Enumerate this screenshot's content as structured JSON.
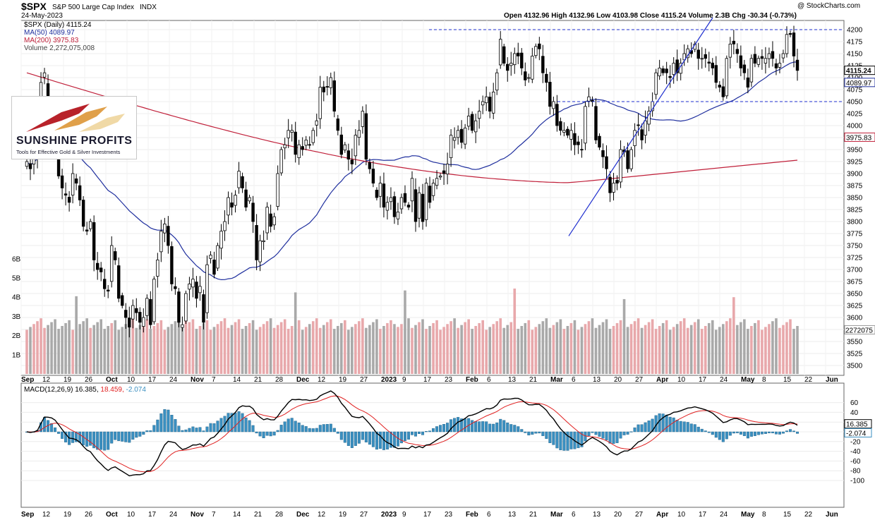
{
  "header": {
    "symbol": "$SPX",
    "name": "S&P 500 Large Cap Index",
    "exchange": "INDX",
    "date": "24-May-2023",
    "copyright": "@ StockCharts.com",
    "ohlc": "Open 4132.96  High 4132.96  Low 4103.98  Close 4115.24  Volume 2.3B  Chg -30.34 (-0.73%)"
  },
  "legend": {
    "main": "$SPX (Daily) 4115.24",
    "ma50": "MA(50) 4089.97",
    "ma200": "MA(200) 3975.83",
    "volume": "Volume 2,272,075,008",
    "macd_name": "MACD(12,26,9) 16.385,",
    "macd_signal": " 18.459,",
    "macd_hist": " -2.074"
  },
  "logo": {
    "name": "SUNSHINE PROFITS",
    "tagline": "Tools for Effective Gold & Silver Investments"
  },
  "colors": {
    "up_volume": "#e8a8ab",
    "down_volume": "#a9a9a9",
    "ma50": "#1f2f9e",
    "ma200": "#c0203a",
    "macd": "#000000",
    "signal": "#e02020",
    "hist": "#3a8fc0",
    "trendline": "#1f2fcf"
  },
  "chart_data": [
    {
      "type": "candlestick",
      "title": "$SPX S&P 500 Large Cap Index",
      "price_ticks": [
        3500,
        3525,
        3550,
        3575,
        3600,
        3625,
        3650,
        3675,
        3700,
        3725,
        3750,
        3775,
        3800,
        3825,
        3850,
        3875,
        3900,
        3925,
        3950,
        3975,
        4000,
        4025,
        4050,
        4075,
        4100,
        4125,
        4150,
        4175,
        4200
      ],
      "ylim": [
        3490,
        4215
      ],
      "volume_ticks": [
        "1B",
        "2B",
        "3B",
        "4B",
        "5B",
        "6B"
      ],
      "x_ticks": [
        "Sep",
        "12",
        "19",
        "26",
        "Oct",
        "10",
        "17",
        "24",
        "Nov",
        "7",
        "14",
        "21",
        "28",
        "Dec",
        "12",
        "19",
        "27",
        "2023",
        "9",
        "17",
        "23",
        "Feb",
        "6",
        "13",
        "21",
        "Mar",
        "6",
        "13",
        "20",
        "27",
        "Apr",
        "10",
        "17",
        "24",
        "May",
        "8",
        "15",
        "22",
        "Jun"
      ],
      "price_labels": [
        {
          "value": 4115.24,
          "label": "4115.24"
        },
        {
          "value": 4089.97,
          "label": "4089.97"
        },
        {
          "value": 3975.83,
          "label": "3975.83"
        }
      ],
      "volume_label": "2272075",
      "resistance": 4200,
      "support": 4050,
      "close": [
        3925,
        3910,
        3935,
        3955,
        4090,
        4110,
        4000,
        3990,
        3955,
        3895,
        3870,
        3855,
        3840,
        3900,
        3880,
        3845,
        3790,
        3780,
        3800,
        3720,
        3700,
        3695,
        3660,
        3655,
        3750,
        3720,
        3640,
        3625,
        3600,
        3580,
        3625,
        3610,
        3590,
        3600,
        3640,
        3585,
        3680,
        3720,
        3780,
        3795,
        3750,
        3670,
        3660,
        3590,
        3585,
        3650,
        3670,
        3680,
        3640,
        3665,
        3590,
        3710,
        3730,
        3690,
        3750,
        3780,
        3800,
        3850,
        3830,
        3855,
        3905,
        3870,
        3830,
        3850,
        3800,
        3720,
        3760,
        3760,
        3830,
        3790,
        3810,
        3900,
        3950,
        3960,
        3990,
        3990,
        3940,
        3960,
        3950,
        3970,
        3960,
        3990,
        4010,
        4080,
        4070,
        4080,
        4100,
        4030,
        3990,
        3940,
        3960,
        3930,
        3920,
        3980,
        3990,
        4030,
        3930,
        3910,
        3880,
        3850,
        3880,
        3830,
        3840,
        3850,
        3810,
        3820,
        3850,
        3840,
        3830,
        3890,
        3800,
        3860,
        3800,
        3880,
        3840,
        3880,
        3890,
        3895,
        3900,
        3920,
        3980,
        3975,
        3990,
        3965,
        3995,
        4020,
        3990,
        4010,
        4030,
        4050,
        4060,
        4030,
        4070,
        4110,
        4180,
        4130,
        4115,
        4130,
        4150,
        4145,
        4120,
        4095,
        4100,
        4145,
        4165,
        4160,
        4110,
        4090,
        4040,
        4050,
        4000,
        3990,
        3990,
        3980,
        3990,
        3960,
        3960,
        3950,
        4040,
        4060,
        4050,
        3970,
        3955,
        3935,
        3910,
        3860,
        3880,
        3880,
        3950,
        3945,
        3910,
        3950,
        3990,
        4000,
        3970,
        4010,
        4030,
        4050,
        4110,
        4120,
        4110,
        4110,
        4100,
        4130,
        4110,
        4130,
        4150,
        4160,
        4150,
        4170,
        4140,
        4140,
        4140,
        4130,
        4120,
        4090,
        4080,
        4060,
        4140,
        4170,
        4170,
        4150,
        4120,
        4110,
        4080,
        4140,
        4130,
        4140,
        4140,
        4140,
        4150,
        4140,
        4120,
        4130,
        4150,
        4190,
        4190,
        4145,
        4115
      ]
    },
    {
      "type": "line",
      "title": "MACD(12,26,9)",
      "y_ticks": [
        60,
        40,
        20,
        0,
        -20,
        -40,
        -60,
        -80,
        -100
      ],
      "ylim": [
        -110,
        70
      ],
      "value_labels": [
        "16.385",
        "-2.074"
      ],
      "series_names": [
        "MACD",
        "Signal",
        "Histogram"
      ],
      "last_values": {
        "macd": 16.385,
        "signal": 18.459,
        "hist": -2.074
      }
    }
  ]
}
